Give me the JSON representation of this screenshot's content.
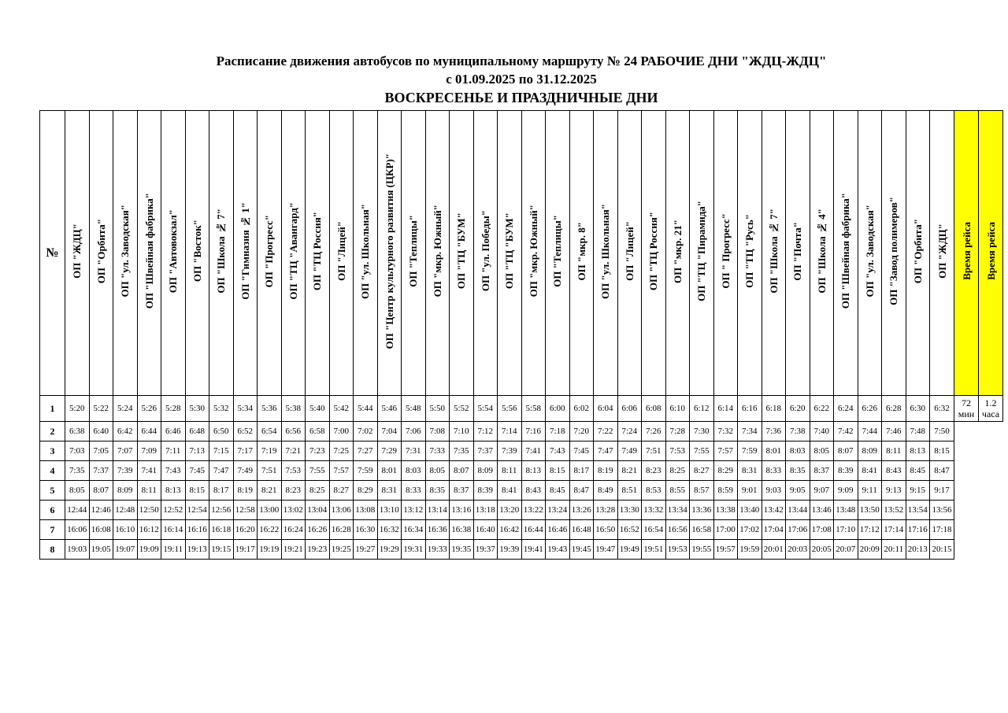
{
  "title": {
    "line1": "Расписание движения автобусов по муниципальному маршруту № 24 РАБОЧИЕ ДНИ \"ЖДЦ-ЖДЦ\"",
    "line2": "с 01.09.2025 по 31.12.2025",
    "line3": "ВОСКРЕСЕНЬЕ И ПРАЗДНИЧНЫЕ ДНИ"
  },
  "table": {
    "number_header": "№",
    "stop_headers": [
      "ОП \"ЖДЦ\"",
      "ОП \"Орбита\"",
      "ОП \"ул. Заводская\"",
      "ОП \"Швейная фабрика\"",
      "ОП \"Автовокзал\"",
      "ОП \"Восток\"",
      "ОП \"Школа № 7\"",
      "ОП \"Гимназия № 1\"",
      "ОП \"Прогресс\"",
      "ОП \"ТЦ \"Авангард\"",
      "ОП \"ТЦ Россия\"",
      "ОП \"Лицей\"",
      "ОП \"ул. Школьная\"",
      "ОП \"Центр культурного развития (ЦКР)\"",
      "ОП \"Теплицы\"",
      "ОП \"мкр. Южный\"",
      "ОП \"ТЦ \"БУМ\"",
      "ОП \"ул. Победы\"",
      "ОП \"ТЦ \"БУМ\"",
      "ОП \"мкр. Южный\"",
      "ОП \"Теплицы\"",
      "ОП \"мкр. 8\"",
      "ОП \"ул. Школьная\"",
      "ОП \"Лицей\"",
      "ОП \"ТЦ Россия\"",
      "ОП \"мкр. 21\"",
      "ОП \"ТЦ \"Пирамида\"",
      "ОП \" Прогресс\"",
      "ОП \"ТЦ \"Русь\"",
      "ОП \"Школа № 7\"",
      "ОП \"Почта\"",
      "ОП \"Школа № 4\"",
      "ОП \"Швейная фабрика\"",
      "ОП \"ул. Заводская\"",
      "ОП \"Завод полимеров\"",
      "ОП \"Орбита\"",
      "ОП \"ЖДЦ\""
    ],
    "trip_time_columns": [
      {
        "label": "Время рейса",
        "value": "72",
        "unit": "мин"
      },
      {
        "label": "Время рейса",
        "value": "1.2",
        "unit": "часа"
      }
    ],
    "rows": [
      {
        "num": "1",
        "times": [
          "5:20",
          "5:22",
          "5:24",
          "5:26",
          "5:28",
          "5:30",
          "5:32",
          "5:34",
          "5:36",
          "5:38",
          "5:40",
          "5:42",
          "5:44",
          "5:46",
          "5:48",
          "5:50",
          "5:52",
          "5:54",
          "5:56",
          "5:58",
          "6:00",
          "6:02",
          "6:04",
          "6:06",
          "6:08",
          "6:10",
          "6:12",
          "6:14",
          "6:16",
          "6:18",
          "6:20",
          "6:22",
          "6:24",
          "6:26",
          "6:28",
          "6:30",
          "6:32"
        ]
      },
      {
        "num": "2",
        "times": [
          "6:38",
          "6:40",
          "6:42",
          "6:44",
          "6:46",
          "6:48",
          "6:50",
          "6:52",
          "6:54",
          "6:56",
          "6:58",
          "7:00",
          "7:02",
          "7:04",
          "7:06",
          "7:08",
          "7:10",
          "7:12",
          "7:14",
          "7:16",
          "7:18",
          "7:20",
          "7:22",
          "7:24",
          "7:26",
          "7:28",
          "7:30",
          "7:32",
          "7:34",
          "7:36",
          "7:38",
          "7:40",
          "7:42",
          "7:44",
          "7:46",
          "7:48",
          "7:50"
        ]
      },
      {
        "num": "3",
        "times": [
          "7:03",
          "7:05",
          "7:07",
          "7:09",
          "7:11",
          "7:13",
          "7:15",
          "7:17",
          "7:19",
          "7:21",
          "7:23",
          "7:25",
          "7:27",
          "7:29",
          "7:31",
          "7:33",
          "7:35",
          "7:37",
          "7:39",
          "7:41",
          "7:43",
          "7:45",
          "7:47",
          "7:49",
          "7:51",
          "7:53",
          "7:55",
          "7:57",
          "7:59",
          "8:01",
          "8:03",
          "8:05",
          "8:07",
          "8:09",
          "8:11",
          "8:13",
          "8:15"
        ]
      },
      {
        "num": "4",
        "times": [
          "7:35",
          "7:37",
          "7:39",
          "7:41",
          "7:43",
          "7:45",
          "7:47",
          "7:49",
          "7:51",
          "7:53",
          "7:55",
          "7:57",
          "7:59",
          "8:01",
          "8:03",
          "8:05",
          "8:07",
          "8:09",
          "8:11",
          "8:13",
          "8:15",
          "8:17",
          "8:19",
          "8:21",
          "8:23",
          "8:25",
          "8:27",
          "8:29",
          "8:31",
          "8:33",
          "8:35",
          "8:37",
          "8:39",
          "8:41",
          "8:43",
          "8:45",
          "8:47"
        ]
      },
      {
        "num": "5",
        "times": [
          "8:05",
          "8:07",
          "8:09",
          "8:11",
          "8:13",
          "8:15",
          "8:17",
          "8:19",
          "8:21",
          "8:23",
          "8:25",
          "8:27",
          "8:29",
          "8:31",
          "8:33",
          "8:35",
          "8:37",
          "8:39",
          "8:41",
          "8:43",
          "8:45",
          "8:47",
          "8:49",
          "8:51",
          "8:53",
          "8:55",
          "8:57",
          "8:59",
          "9:01",
          "9:03",
          "9:05",
          "9:07",
          "9:09",
          "9:11",
          "9:13",
          "9:15",
          "9:17"
        ]
      },
      {
        "num": "6",
        "times": [
          "12:44",
          "12:46",
          "12:48",
          "12:50",
          "12:52",
          "12:54",
          "12:56",
          "12:58",
          "13:00",
          "13:02",
          "13:04",
          "13:06",
          "13:08",
          "13:10",
          "13:12",
          "13:14",
          "13:16",
          "13:18",
          "13:20",
          "13:22",
          "13:24",
          "13:26",
          "13:28",
          "13:30",
          "13:32",
          "13:34",
          "13:36",
          "13:38",
          "13:40",
          "13:42",
          "13:44",
          "13:46",
          "13:48",
          "13:50",
          "13:52",
          "13:54",
          "13:56"
        ]
      },
      {
        "num": "7",
        "times": [
          "16:06",
          "16:08",
          "16:10",
          "16:12",
          "16:14",
          "16:16",
          "16:18",
          "16:20",
          "16:22",
          "16:24",
          "16:26",
          "16:28",
          "16:30",
          "16:32",
          "16:34",
          "16:36",
          "16:38",
          "16:40",
          "16:42",
          "16:44",
          "16:46",
          "16:48",
          "16:50",
          "16:52",
          "16:54",
          "16:56",
          "16:58",
          "17:00",
          "17:02",
          "17:04",
          "17:06",
          "17:08",
          "17:10",
          "17:12",
          "17:14",
          "17:16",
          "17:18"
        ]
      },
      {
        "num": "8",
        "times": [
          "19:03",
          "19:05",
          "19:07",
          "19:09",
          "19:11",
          "19:13",
          "19:15",
          "19:17",
          "19:19",
          "19:21",
          "19:23",
          "19:25",
          "19:27",
          "19:29",
          "19:31",
          "19:33",
          "19:35",
          "19:37",
          "19:39",
          "19:41",
          "19:43",
          "19:45",
          "19:47",
          "19:49",
          "19:51",
          "19:53",
          "19:55",
          "19:57",
          "19:59",
          "20:01",
          "20:03",
          "20:05",
          "20:07",
          "20:09",
          "20:11",
          "20:13",
          "20:15"
        ]
      }
    ]
  },
  "colors": {
    "highlight_yellow": "#FFFF00",
    "border": "#000000",
    "page_background": "#FFFFFF"
  }
}
